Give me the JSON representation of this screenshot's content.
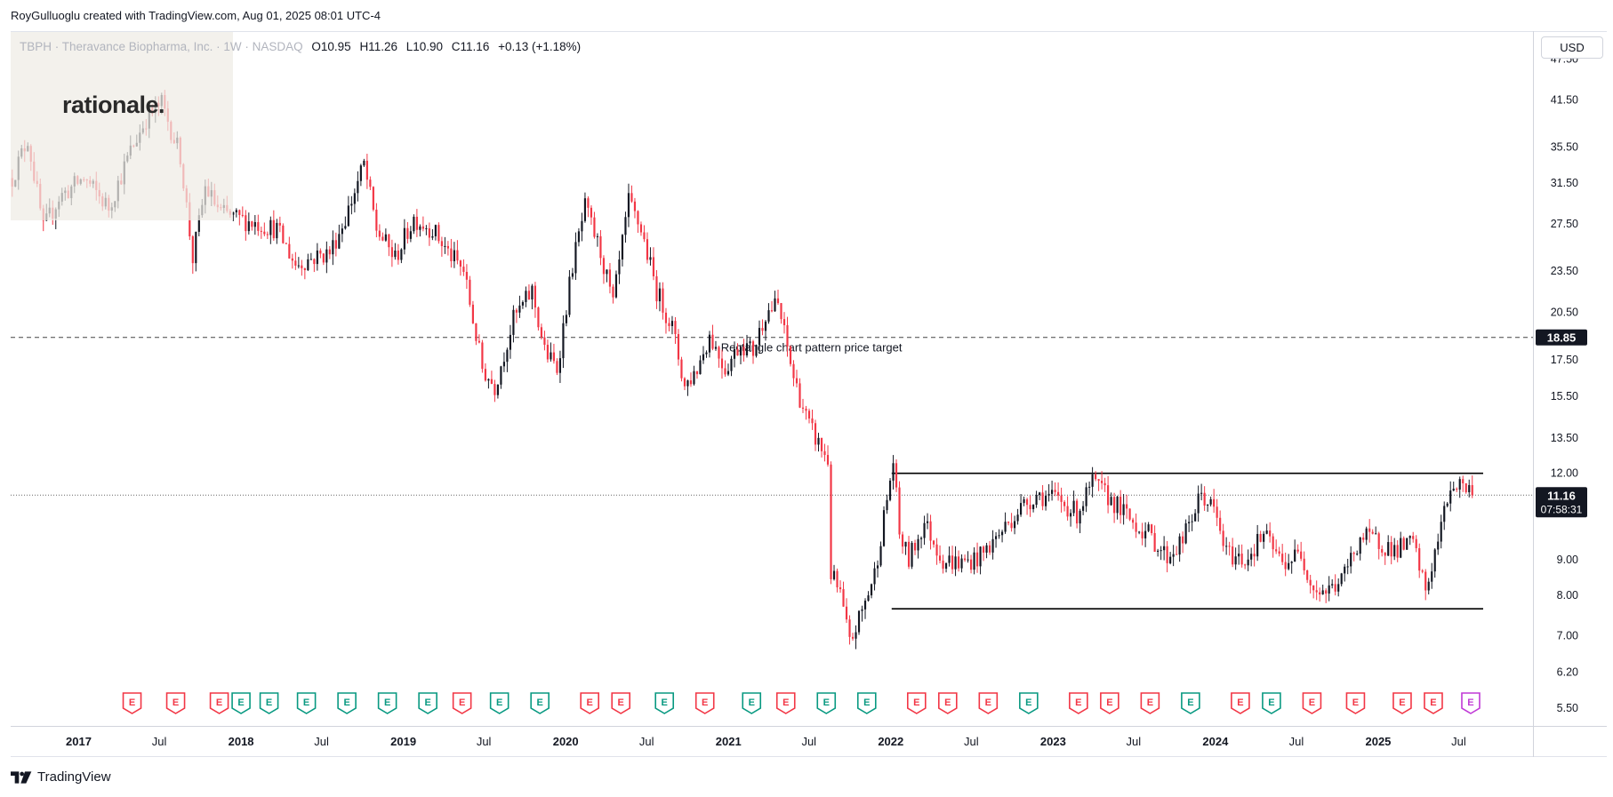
{
  "header": {
    "credit": "RoyGulluoglu created with TradingView.com, Aug 01, 2025 08:01 UTC-4"
  },
  "legend": {
    "symbol_name": "TBPH · Theravance Biopharma, Inc. · 1W · NASDAQ",
    "open": "O10.95",
    "high": "H11.26",
    "low": "L10.90",
    "close": "C11.16",
    "change": "+0.13 (+1.18%)"
  },
  "logo": {
    "text": "rationale."
  },
  "currency_button": {
    "label": "USD"
  },
  "footer": {
    "brand": "TradingView"
  },
  "colors": {
    "up": "#131722",
    "down": "#f23645",
    "earnings_red": "#f23645",
    "earnings_green": "#089981",
    "earnings_purple": "#c03ad6"
  },
  "chart_data": {
    "type": "candlestick",
    "y_scale": "log",
    "ylim": [
      5.2,
      52
    ],
    "x_range": [
      "2016-08-01",
      "2025-12-15"
    ],
    "y_ticks": [
      "47.50",
      "41.50",
      "35.50",
      "31.50",
      "27.50",
      "23.50",
      "20.50",
      "17.50",
      "15.50",
      "13.50",
      "12.00",
      "9.00",
      "8.00",
      "7.00",
      "6.20",
      "5.50"
    ],
    "x_ticks": [
      {
        "date": "2017-01-01",
        "label": "2017",
        "bold": true
      },
      {
        "date": "2017-07-01",
        "label": "Jul",
        "bold": false
      },
      {
        "date": "2018-01-01",
        "label": "2018",
        "bold": true
      },
      {
        "date": "2018-07-01",
        "label": "Jul",
        "bold": false
      },
      {
        "date": "2019-01-01",
        "label": "2019",
        "bold": true
      },
      {
        "date": "2019-07-01",
        "label": "Jul",
        "bold": false
      },
      {
        "date": "2020-01-01",
        "label": "2020",
        "bold": true
      },
      {
        "date": "2020-07-01",
        "label": "Jul",
        "bold": false
      },
      {
        "date": "2021-01-01",
        "label": "2021",
        "bold": true
      },
      {
        "date": "2021-07-01",
        "label": "Jul",
        "bold": false
      },
      {
        "date": "2022-01-01",
        "label": "2022",
        "bold": true
      },
      {
        "date": "2022-07-01",
        "label": "Jul",
        "bold": false
      },
      {
        "date": "2023-01-01",
        "label": "2023",
        "bold": true
      },
      {
        "date": "2023-07-01",
        "label": "Jul",
        "bold": false
      },
      {
        "date": "2024-01-01",
        "label": "2024",
        "bold": true
      },
      {
        "date": "2024-07-01",
        "label": "Jul",
        "bold": false
      },
      {
        "date": "2025-01-01",
        "label": "2025",
        "bold": true
      },
      {
        "date": "2025-07-01",
        "label": "Jul",
        "bold": false
      }
    ],
    "price_anchors": [
      [
        "2016-08-01",
        32
      ],
      [
        "2016-09-05",
        36.5
      ],
      [
        "2016-10-10",
        27
      ],
      [
        "2016-11-14",
        30
      ],
      [
        "2017-01-09",
        32
      ],
      [
        "2017-03-06",
        29
      ],
      [
        "2017-04-24",
        35
      ],
      [
        "2017-05-29",
        39
      ],
      [
        "2017-07-03",
        41
      ],
      [
        "2017-08-14",
        34.5
      ],
      [
        "2017-09-11",
        24.5
      ],
      [
        "2017-10-09",
        31
      ],
      [
        "2017-11-13",
        28.5
      ],
      [
        "2017-12-18",
        28
      ],
      [
        "2018-02-05",
        27.5
      ],
      [
        "2018-03-19",
        27
      ],
      [
        "2018-04-30",
        24
      ],
      [
        "2018-06-04",
        24.5
      ],
      [
        "2018-07-16",
        25
      ],
      [
        "2018-08-20",
        28
      ],
      [
        "2018-10-01",
        33.5
      ],
      [
        "2018-10-29",
        27
      ],
      [
        "2018-12-10",
        24.5
      ],
      [
        "2019-01-21",
        28
      ],
      [
        "2019-03-04",
        27
      ],
      [
        "2019-04-08",
        25
      ],
      [
        "2019-05-13",
        23.5
      ],
      [
        "2019-06-24",
        17
      ],
      [
        "2019-07-22",
        16
      ],
      [
        "2019-09-02",
        20
      ],
      [
        "2019-10-14",
        22
      ],
      [
        "2019-11-11",
        18
      ],
      [
        "2019-12-09",
        17
      ],
      [
        "2020-01-13",
        24
      ],
      [
        "2020-02-10",
        29
      ],
      [
        "2020-03-16",
        25
      ],
      [
        "2020-04-13",
        21
      ],
      [
        "2020-05-18",
        29.5
      ],
      [
        "2020-06-15",
        27
      ],
      [
        "2020-07-20",
        22
      ],
      [
        "2020-08-24",
        19.5
      ],
      [
        "2020-09-21",
        16
      ],
      [
        "2020-10-19",
        17
      ],
      [
        "2020-11-16",
        19
      ],
      [
        "2020-12-21",
        17
      ],
      [
        "2021-01-25",
        18.5
      ],
      [
        "2021-02-22",
        18
      ],
      [
        "2021-03-22",
        20.5
      ],
      [
        "2021-04-19",
        21
      ],
      [
        "2021-05-24",
        16.5
      ],
      [
        "2021-06-28",
        14
      ],
      [
        "2021-07-26",
        13
      ],
      [
        "2021-08-09",
        12.5
      ],
      [
        "2021-08-16",
        8.6
      ],
      [
        "2021-09-06",
        8.0
      ],
      [
        "2021-09-27",
        6.8
      ],
      [
        "2021-10-25",
        7.6
      ],
      [
        "2021-11-22",
        8.6
      ],
      [
        "2021-12-20",
        11.0
      ],
      [
        "2022-01-03",
        12.5
      ],
      [
        "2022-01-17",
        9.8
      ],
      [
        "2022-02-07",
        9.0
      ],
      [
        "2022-03-14",
        10.2
      ],
      [
        "2022-04-25",
        9.0
      ],
      [
        "2022-06-06",
        8.9
      ],
      [
        "2022-07-18",
        9.1
      ],
      [
        "2022-08-29",
        9.8
      ],
      [
        "2022-10-10",
        10.6
      ],
      [
        "2022-11-21",
        11.2
      ],
      [
        "2023-01-09",
        11.0
      ],
      [
        "2023-02-20",
        10.5
      ],
      [
        "2023-03-27",
        11.6
      ],
      [
        "2023-05-08",
        11.0
      ],
      [
        "2023-06-19",
        10.3
      ],
      [
        "2023-07-31",
        9.8
      ],
      [
        "2023-09-11",
        9.1
      ],
      [
        "2023-10-16",
        9.6
      ],
      [
        "2023-11-27",
        11.2
      ],
      [
        "2023-12-25",
        10.6
      ],
      [
        "2024-01-22",
        9.2
      ],
      [
        "2024-03-04",
        9.0
      ],
      [
        "2024-04-15",
        9.8
      ],
      [
        "2024-05-27",
        8.9
      ],
      [
        "2024-07-08",
        9.2
      ],
      [
        "2024-08-05",
        8.2
      ],
      [
        "2024-09-02",
        8.1
      ],
      [
        "2024-10-07",
        8.4
      ],
      [
        "2024-11-18",
        9.7
      ],
      [
        "2024-12-23",
        9.6
      ],
      [
        "2025-02-03",
        9.3
      ],
      [
        "2025-03-17",
        9.5
      ],
      [
        "2025-04-14",
        8.1
      ],
      [
        "2025-05-12",
        9.6
      ],
      [
        "2025-06-09",
        11.5
      ],
      [
        "2025-07-07",
        11.6
      ],
      [
        "2025-07-28",
        11.16
      ]
    ],
    "horizontal_lines": [
      {
        "price": 18.85,
        "style": "dashed",
        "label": "Rectangle chart pattern price target"
      },
      {
        "price": 11.16,
        "style": "dotted",
        "label": ""
      }
    ],
    "rectangle": {
      "from": "2022-01-03",
      "to": "2025-08-25",
      "upper": 12.0,
      "lower": 7.65
    },
    "price_labels": [
      {
        "price": 18.85,
        "text": "18.85"
      },
      {
        "price": 11.16,
        "text": "11.16",
        "subtext": "07:58:31"
      }
    ],
    "earnings": [
      {
        "date": "2017-05-01",
        "type": "red"
      },
      {
        "date": "2017-08-07",
        "type": "red"
      },
      {
        "date": "2017-11-13",
        "type": "red"
      },
      {
        "date": "2018-01-01",
        "type": "green"
      },
      {
        "date": "2018-03-05",
        "type": "green"
      },
      {
        "date": "2018-05-28",
        "type": "green"
      },
      {
        "date": "2018-08-27",
        "type": "green"
      },
      {
        "date": "2018-11-26",
        "type": "green"
      },
      {
        "date": "2019-02-25",
        "type": "green"
      },
      {
        "date": "2019-05-13",
        "type": "red"
      },
      {
        "date": "2019-08-05",
        "type": "green"
      },
      {
        "date": "2019-11-04",
        "type": "green"
      },
      {
        "date": "2020-02-24",
        "type": "red"
      },
      {
        "date": "2020-05-04",
        "type": "red"
      },
      {
        "date": "2020-08-10",
        "type": "green"
      },
      {
        "date": "2020-11-09",
        "type": "red"
      },
      {
        "date": "2021-02-22",
        "type": "green"
      },
      {
        "date": "2021-05-10",
        "type": "red"
      },
      {
        "date": "2021-08-09",
        "type": "green"
      },
      {
        "date": "2021-11-08",
        "type": "green"
      },
      {
        "date": "2022-02-28",
        "type": "red"
      },
      {
        "date": "2022-05-09",
        "type": "red"
      },
      {
        "date": "2022-08-08",
        "type": "red"
      },
      {
        "date": "2022-11-07",
        "type": "green"
      },
      {
        "date": "2023-02-27",
        "type": "red"
      },
      {
        "date": "2023-05-08",
        "type": "red"
      },
      {
        "date": "2023-08-07",
        "type": "red"
      },
      {
        "date": "2023-11-06",
        "type": "green"
      },
      {
        "date": "2024-02-26",
        "type": "red"
      },
      {
        "date": "2024-05-06",
        "type": "green"
      },
      {
        "date": "2024-08-05",
        "type": "red"
      },
      {
        "date": "2024-11-11",
        "type": "red"
      },
      {
        "date": "2025-02-24",
        "type": "red"
      },
      {
        "date": "2025-05-05",
        "type": "red"
      },
      {
        "date": "2025-07-28",
        "type": "purple"
      }
    ]
  }
}
